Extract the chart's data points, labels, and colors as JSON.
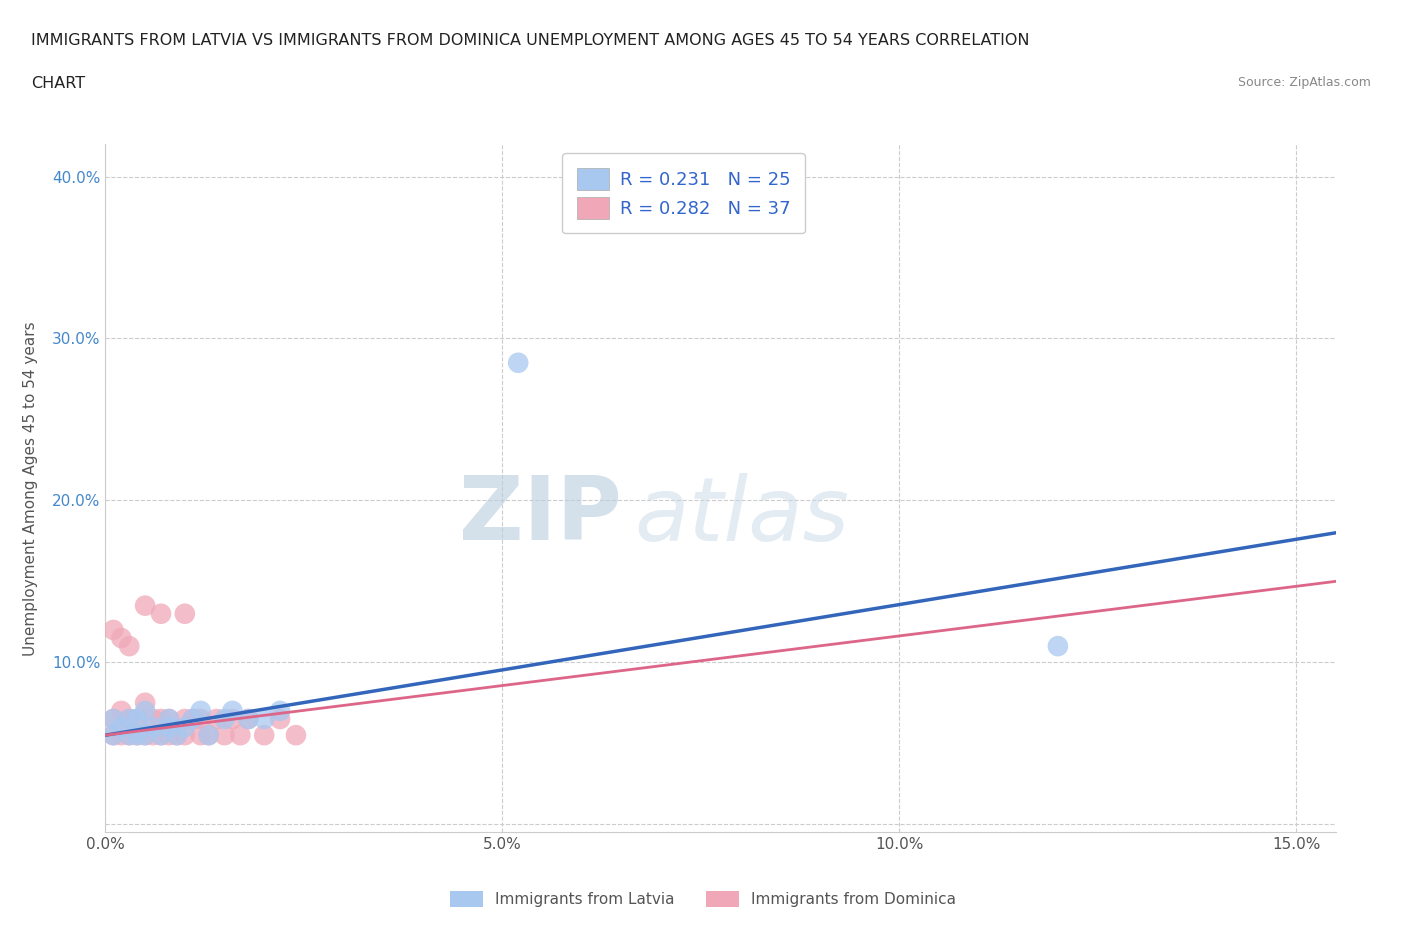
{
  "title_line1": "IMMIGRANTS FROM LATVIA VS IMMIGRANTS FROM DOMINICA UNEMPLOYMENT AMONG AGES 45 TO 54 YEARS CORRELATION",
  "title_line2": "CHART",
  "source": "Source: ZipAtlas.com",
  "ylabel": "Unemployment Among Ages 45 to 54 years",
  "xlim": [
    0.0,
    0.155
  ],
  "ylim": [
    -0.005,
    0.42
  ],
  "xticks": [
    0.0,
    0.05,
    0.1,
    0.15
  ],
  "xticklabels": [
    "0.0%",
    "5.0%",
    "10.0%",
    "15.0%"
  ],
  "yticks": [
    0.0,
    0.1,
    0.2,
    0.3,
    0.4
  ],
  "yticklabels": [
    "",
    "10.0%",
    "20.0%",
    "30.0%",
    "40.0%"
  ],
  "latvia_R": 0.231,
  "latvia_N": 25,
  "dominica_R": 0.282,
  "dominica_N": 37,
  "latvia_color": "#a8c8f0",
  "dominica_color": "#f0a8b8",
  "latvia_line_color": "#3366bb",
  "dominica_line_color": "#dd6688",
  "legend_label_latvia": "Immigrants from Latvia",
  "legend_label_dominica": "Immigrants from Dominica",
  "watermark_zip": "ZIP",
  "watermark_atlas": "atlas",
  "background_color": "#ffffff",
  "grid_color": "#cccccc",
  "latvia_x": [
    0.001,
    0.001,
    0.002,
    0.003,
    0.003,
    0.004,
    0.004,
    0.005,
    0.005,
    0.006,
    0.007,
    0.008,
    0.008,
    0.009,
    0.01,
    0.011,
    0.012,
    0.013,
    0.015,
    0.016,
    0.018,
    0.02,
    0.022,
    0.12,
    0.052
  ],
  "latvia_y": [
    0.055,
    0.065,
    0.06,
    0.055,
    0.065,
    0.055,
    0.065,
    0.055,
    0.07,
    0.06,
    0.055,
    0.06,
    0.065,
    0.055,
    0.06,
    0.065,
    0.07,
    0.055,
    0.065,
    0.07,
    0.065,
    0.065,
    0.07,
    0.11,
    0.285
  ],
  "dominica_x": [
    0.001,
    0.001,
    0.002,
    0.002,
    0.003,
    0.003,
    0.004,
    0.004,
    0.005,
    0.005,
    0.006,
    0.006,
    0.007,
    0.007,
    0.008,
    0.008,
    0.009,
    0.01,
    0.01,
    0.011,
    0.012,
    0.012,
    0.013,
    0.014,
    0.015,
    0.016,
    0.017,
    0.018,
    0.02,
    0.022,
    0.024,
    0.001,
    0.002,
    0.003,
    0.005,
    0.007,
    0.01
  ],
  "dominica_y": [
    0.055,
    0.065,
    0.055,
    0.07,
    0.055,
    0.065,
    0.055,
    0.065,
    0.055,
    0.075,
    0.055,
    0.065,
    0.055,
    0.065,
    0.055,
    0.065,
    0.055,
    0.055,
    0.065,
    0.065,
    0.055,
    0.065,
    0.055,
    0.065,
    0.055,
    0.065,
    0.055,
    0.065,
    0.055,
    0.065,
    0.055,
    0.12,
    0.115,
    0.11,
    0.135,
    0.13,
    0.13
  ],
  "latvia_line_x0": 0.0,
  "latvia_line_x1": 0.155,
  "latvia_line_y0": 0.055,
  "latvia_line_y1": 0.18,
  "dominica_line_x0": 0.0,
  "dominica_line_x1": 0.155,
  "dominica_line_y0": 0.055,
  "dominica_line_y1": 0.15
}
